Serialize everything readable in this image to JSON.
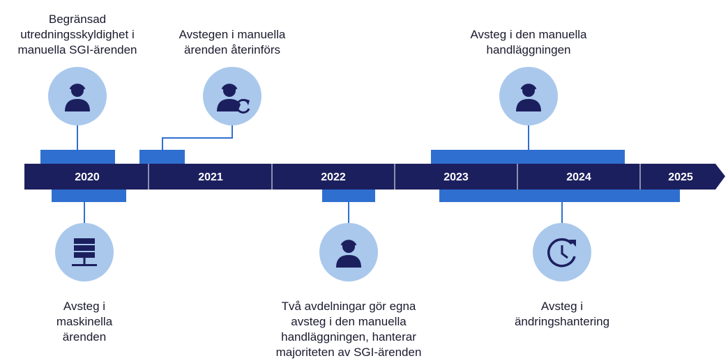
{
  "timeline": {
    "years": [
      "2020",
      "2021",
      "2022",
      "2023",
      "2024",
      "2025"
    ],
    "events": [
      {
        "lines": [
          "Begränsad",
          "utredningsskyldighet i",
          "manuella SGI-ärenden"
        ]
      },
      {
        "lines": [
          "Avstegen i manuella",
          "ärenden återinförs"
        ]
      },
      {
        "lines": [
          "Avsteg i den manuella",
          "handläggningen"
        ]
      },
      {
        "lines": [
          "Avsteg i",
          "maskinella",
          "ärenden"
        ]
      },
      {
        "lines": [
          "Två avdelningar gör egna",
          "avsteg i den manuella",
          "handläggningen, hanterar",
          "majoriteten av SGI-ärenden"
        ]
      },
      {
        "lines": [
          "Avsteg i",
          "ändringshantering"
        ]
      }
    ]
  }
}
